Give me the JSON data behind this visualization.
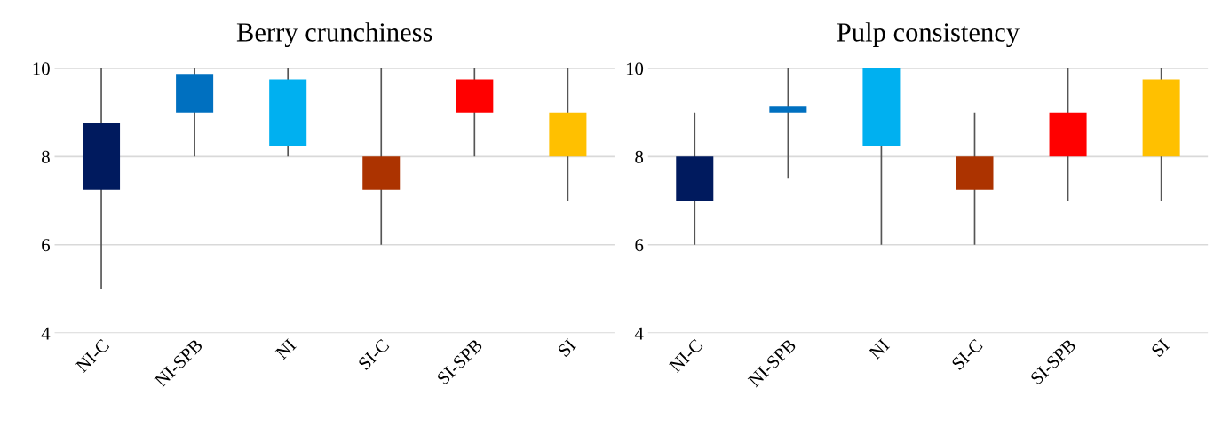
{
  "chart_data": [
    {
      "type": "candlestick",
      "title": "Berry crunchiness",
      "categories": [
        "NI-C",
        "NI-SPB",
        "NI",
        "SI-C",
        "SI-SPB",
        "SI"
      ],
      "ohlc": [
        [
          7.25,
          10,
          5,
          8.75
        ],
        [
          9,
          10,
          8,
          9.875
        ],
        [
          8.25,
          10,
          8,
          9.75
        ],
        [
          7.25,
          10,
          6,
          8
        ],
        [
          9,
          10,
          8,
          9.75
        ],
        [
          8,
          10,
          7,
          9
        ]
      ],
      "colors": [
        "#001a5e",
        "#0070c0",
        "#00b0f0",
        "#ac3300",
        "#ff0000",
        "#ffc000"
      ],
      "ylim": [
        4,
        10
      ],
      "yticks": [
        4,
        6,
        8,
        10
      ],
      "grid": "y"
    },
    {
      "type": "candlestick",
      "title": "Pulp consistency",
      "categories": [
        "NI-C",
        "NI-SPB",
        "NI",
        "SI-C",
        "SI-SPB",
        "SI"
      ],
      "ohlc": [
        [
          7,
          9,
          6,
          8
        ],
        [
          9,
          10,
          7.5,
          9.15
        ],
        [
          8.25,
          10,
          6,
          10
        ],
        [
          7.25,
          9,
          6,
          8
        ],
        [
          8,
          10,
          7,
          9
        ],
        [
          8,
          10,
          7,
          9.75
        ]
      ],
      "colors": [
        "#001a5e",
        "#0070c0",
        "#00b0f0",
        "#ac3300",
        "#ff0000",
        "#ffc000"
      ],
      "ylim": [
        4,
        10
      ],
      "yticks": [
        4,
        6,
        8,
        10
      ],
      "grid": "y"
    }
  ]
}
